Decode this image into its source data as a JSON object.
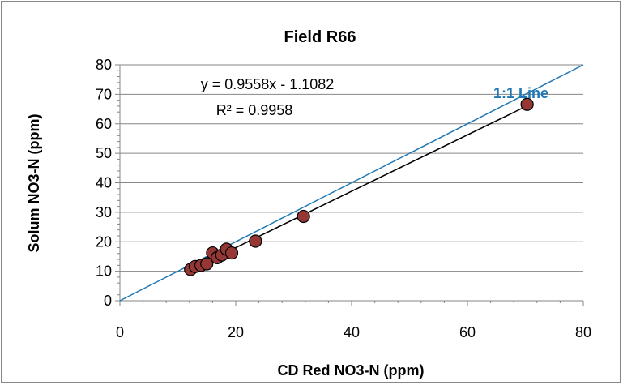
{
  "chart_data": {
    "type": "scatter",
    "title": "Field R66",
    "xlabel": "CD Red NO3-N (ppm)",
    "ylabel": "Solum NO3-N (ppm)",
    "xlim": [
      0,
      80
    ],
    "ylim": [
      0,
      80
    ],
    "x_ticks": [
      0,
      20,
      40,
      60,
      80
    ],
    "y_ticks": [
      0,
      10,
      20,
      30,
      40,
      50,
      60,
      70,
      80
    ],
    "grid": "horizontal",
    "legend": "none",
    "series": [
      {
        "points": [
          {
            "x": 12.2,
            "y": 10.6
          },
          {
            "x": 13.0,
            "y": 11.6
          },
          {
            "x": 14.0,
            "y": 12.0
          },
          {
            "x": 15.0,
            "y": 12.5
          },
          {
            "x": 16.0,
            "y": 16.2
          },
          {
            "x": 16.8,
            "y": 14.6
          },
          {
            "x": 17.6,
            "y": 15.5
          },
          {
            "x": 18.4,
            "y": 17.5
          },
          {
            "x": 19.3,
            "y": 16.2
          },
          {
            "x": 23.4,
            "y": 20.2
          },
          {
            "x": 31.7,
            "y": 28.6
          },
          {
            "x": 70.3,
            "y": 66.6
          }
        ],
        "marker_color": "#953735",
        "marker_edge": "#000000"
      }
    ],
    "trendline": {
      "slope": 0.9558,
      "intercept": -1.1082,
      "x_range": [
        12.2,
        70.3
      ],
      "color": "#000000",
      "equation": "y = 0.9558x - 1.1082",
      "r_squared": "R² = 0.9958"
    },
    "reference_line": {
      "label": "1:1 Line",
      "x_range": [
        0,
        80
      ],
      "color": "#1F77B4"
    }
  }
}
